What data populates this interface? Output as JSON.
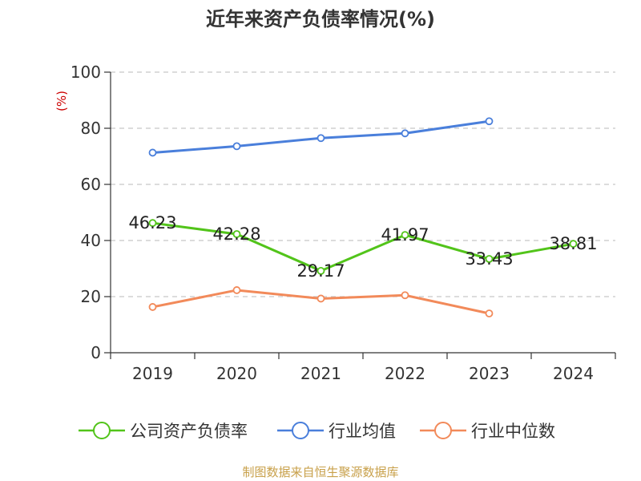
{
  "chart_data": {
    "type": "line",
    "title": "近年来资产负债率情况(%)",
    "ylabel": "(%)",
    "xlabel": "",
    "categories": [
      "2019",
      "2020",
      "2021",
      "2022",
      "2023",
      "2024"
    ],
    "ylim": [
      0,
      100
    ],
    "yticks": [
      0,
      20,
      40,
      60,
      80,
      100
    ],
    "grid": true,
    "legend_position": "bottom",
    "series": [
      {
        "name": "公司资产负债率",
        "color": "#52c41a",
        "values": [
          46.23,
          42.28,
          29.17,
          41.97,
          33.43,
          38.81
        ],
        "labels": [
          "46.23",
          "42.28",
          "29.17",
          "41.97",
          "33.43",
          "38.81"
        ]
      },
      {
        "name": "行业均值",
        "color": "#4a7fdb",
        "values": [
          71.3,
          73.6,
          76.5,
          78.2,
          82.5,
          null
        ]
      },
      {
        "name": "行业中位数",
        "color": "#f28a5a",
        "values": [
          16.3,
          22.3,
          19.3,
          20.5,
          14.0,
          null
        ]
      }
    ]
  },
  "footer": {
    "source": "制图数据来自恒生聚源数据库"
  }
}
